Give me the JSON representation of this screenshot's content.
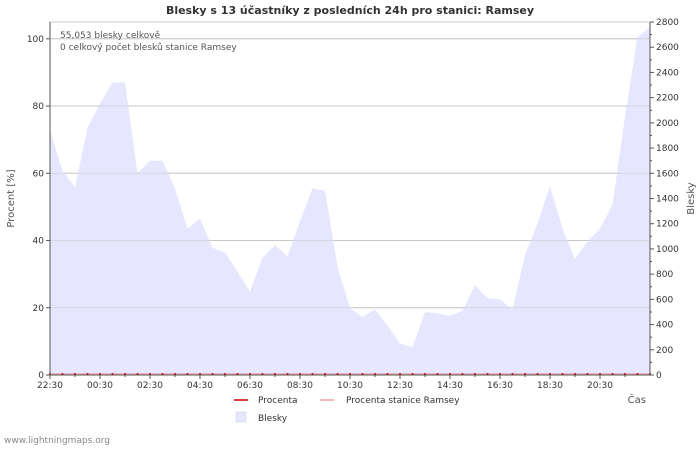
{
  "chart_data": {
    "type": "area",
    "title": "Blesky s 13 účastníky z posledních 24h pro stanici: Ramsey",
    "xlabel": "Čas",
    "ylabel_left": "Procent   [%]",
    "ylabel_right": "Blesky",
    "ylim_left": [
      0,
      105
    ],
    "ylim_right": [
      0,
      2800
    ],
    "yticks_left": [
      0,
      20,
      40,
      60,
      80,
      100
    ],
    "yticks_right": [
      0,
      200,
      400,
      600,
      800,
      1000,
      1200,
      1400,
      1600,
      1800,
      2000,
      2200,
      2400,
      2600,
      2800
    ],
    "x_ticks": [
      "22:30",
      "00:30",
      "02:30",
      "04:30",
      "06:30",
      "08:30",
      "10:30",
      "12:30",
      "14:30",
      "16:30",
      "18:30",
      "20:30"
    ],
    "annotations": [
      "55,053 blesky celkově",
      "0 celkový počet blesků stanice Ramsey"
    ],
    "legend": [
      {
        "label": "Procenta",
        "color": "#cc0000",
        "kind": "line"
      },
      {
        "label": "Procenta stanice Ramsey",
        "color": "#f4a0a0",
        "kind": "line"
      },
      {
        "label": "Blesky",
        "color": "#e6e6ff",
        "kind": "area"
      }
    ],
    "series": [
      {
        "name": "Blesky",
        "axis": "right",
        "color": "#e6e6ff",
        "x": [
          0,
          0.5,
          1,
          1.5,
          2,
          2.5,
          3,
          3.5,
          4,
          4.5,
          5,
          5.5,
          6,
          6.5,
          7,
          7.5,
          8,
          8.5,
          9,
          9.5,
          10,
          10.5,
          11,
          11.5,
          12,
          12.5,
          13,
          13.5,
          14,
          14.5,
          15,
          15.5,
          16,
          16.5,
          17,
          17.5,
          18,
          18.5,
          19,
          19.5,
          20,
          20.5,
          21,
          21.5,
          22,
          22.5,
          23,
          23.5,
          24
        ],
        "values": [
          1940,
          1620,
          1490,
          1960,
          2150,
          2320,
          2320,
          1600,
          1700,
          1700,
          1480,
          1160,
          1240,
          1010,
          970,
          820,
          660,
          930,
          1030,
          940,
          1220,
          1480,
          1460,
          860,
          530,
          460,
          520,
          390,
          250,
          220,
          500,
          490,
          470,
          510,
          710,
          610,
          600,
          520,
          950,
          1200,
          1500,
          1160,
          920,
          1060,
          1160,
          1350,
          2050,
          2680,
          2760
        ]
      },
      {
        "name": "Procenta",
        "axis": "left",
        "color": "#cc0000",
        "x": [
          0,
          24
        ],
        "values": [
          0,
          0
        ]
      },
      {
        "name": "Procenta stanice Ramsey",
        "axis": "left",
        "color": "#f4a0a0",
        "x": [
          0,
          24
        ],
        "values": [
          0,
          0
        ]
      }
    ]
  },
  "footer": "www.lightningmaps.org"
}
